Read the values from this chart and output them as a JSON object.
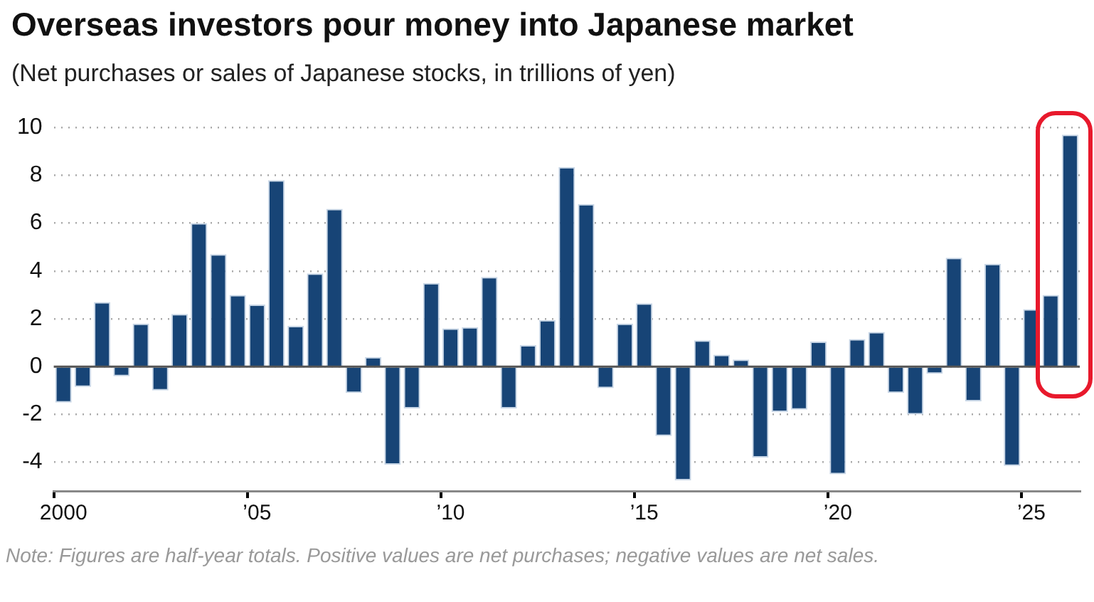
{
  "chart_data": {
    "type": "bar",
    "title": "Overseas investors pour money into Japanese market",
    "subtitle": "(Net purchases or sales of Japanese stocks, in trillions of yen)",
    "categories": [
      "2000",
      null,
      null,
      null,
      null,
      null,
      null,
      null,
      null,
      null,
      "’05",
      null,
      null,
      null,
      null,
      null,
      null,
      null,
      null,
      null,
      "’10",
      null,
      null,
      null,
      null,
      null,
      null,
      null,
      null,
      null,
      "’15",
      null,
      null,
      null,
      null,
      null,
      null,
      null,
      null,
      null,
      "’20",
      null,
      null,
      null,
      null,
      null,
      null,
      null,
      null,
      null,
      "’25",
      null,
      null
    ],
    "values": [
      -1.5,
      -0.85,
      2.7,
      -0.4,
      1.8,
      -1.0,
      2.2,
      6.0,
      4.7,
      3.0,
      2.6,
      7.8,
      1.7,
      3.9,
      6.6,
      -1.1,
      0.4,
      -4.1,
      -1.75,
      3.5,
      1.6,
      1.65,
      3.75,
      -1.75,
      0.9,
      1.95,
      8.35,
      6.8,
      -0.9,
      1.8,
      2.65,
      -2.9,
      -4.75,
      1.1,
      0.5,
      0.3,
      -3.8,
      -1.9,
      -1.8,
      1.05,
      -4.5,
      1.15,
      1.45,
      -1.1,
      -2.0,
      -0.3,
      4.55,
      -1.45,
      4.3,
      -4.15,
      2.4,
      3.0,
      9.7
    ],
    "color": "#174476",
    "ylim": [
      -5.2,
      10
    ],
    "yticks": [
      -4,
      -2,
      0,
      2,
      4,
      6,
      8,
      10
    ],
    "grid": "y",
    "ref_lines": [
      {
        "axis": "y",
        "value": 0,
        "color": "#555555"
      }
    ],
    "annotations": [
      "Note: Figures are half-year totals. Positive values are net purchases; negative values are net sales."
    ]
  }
}
